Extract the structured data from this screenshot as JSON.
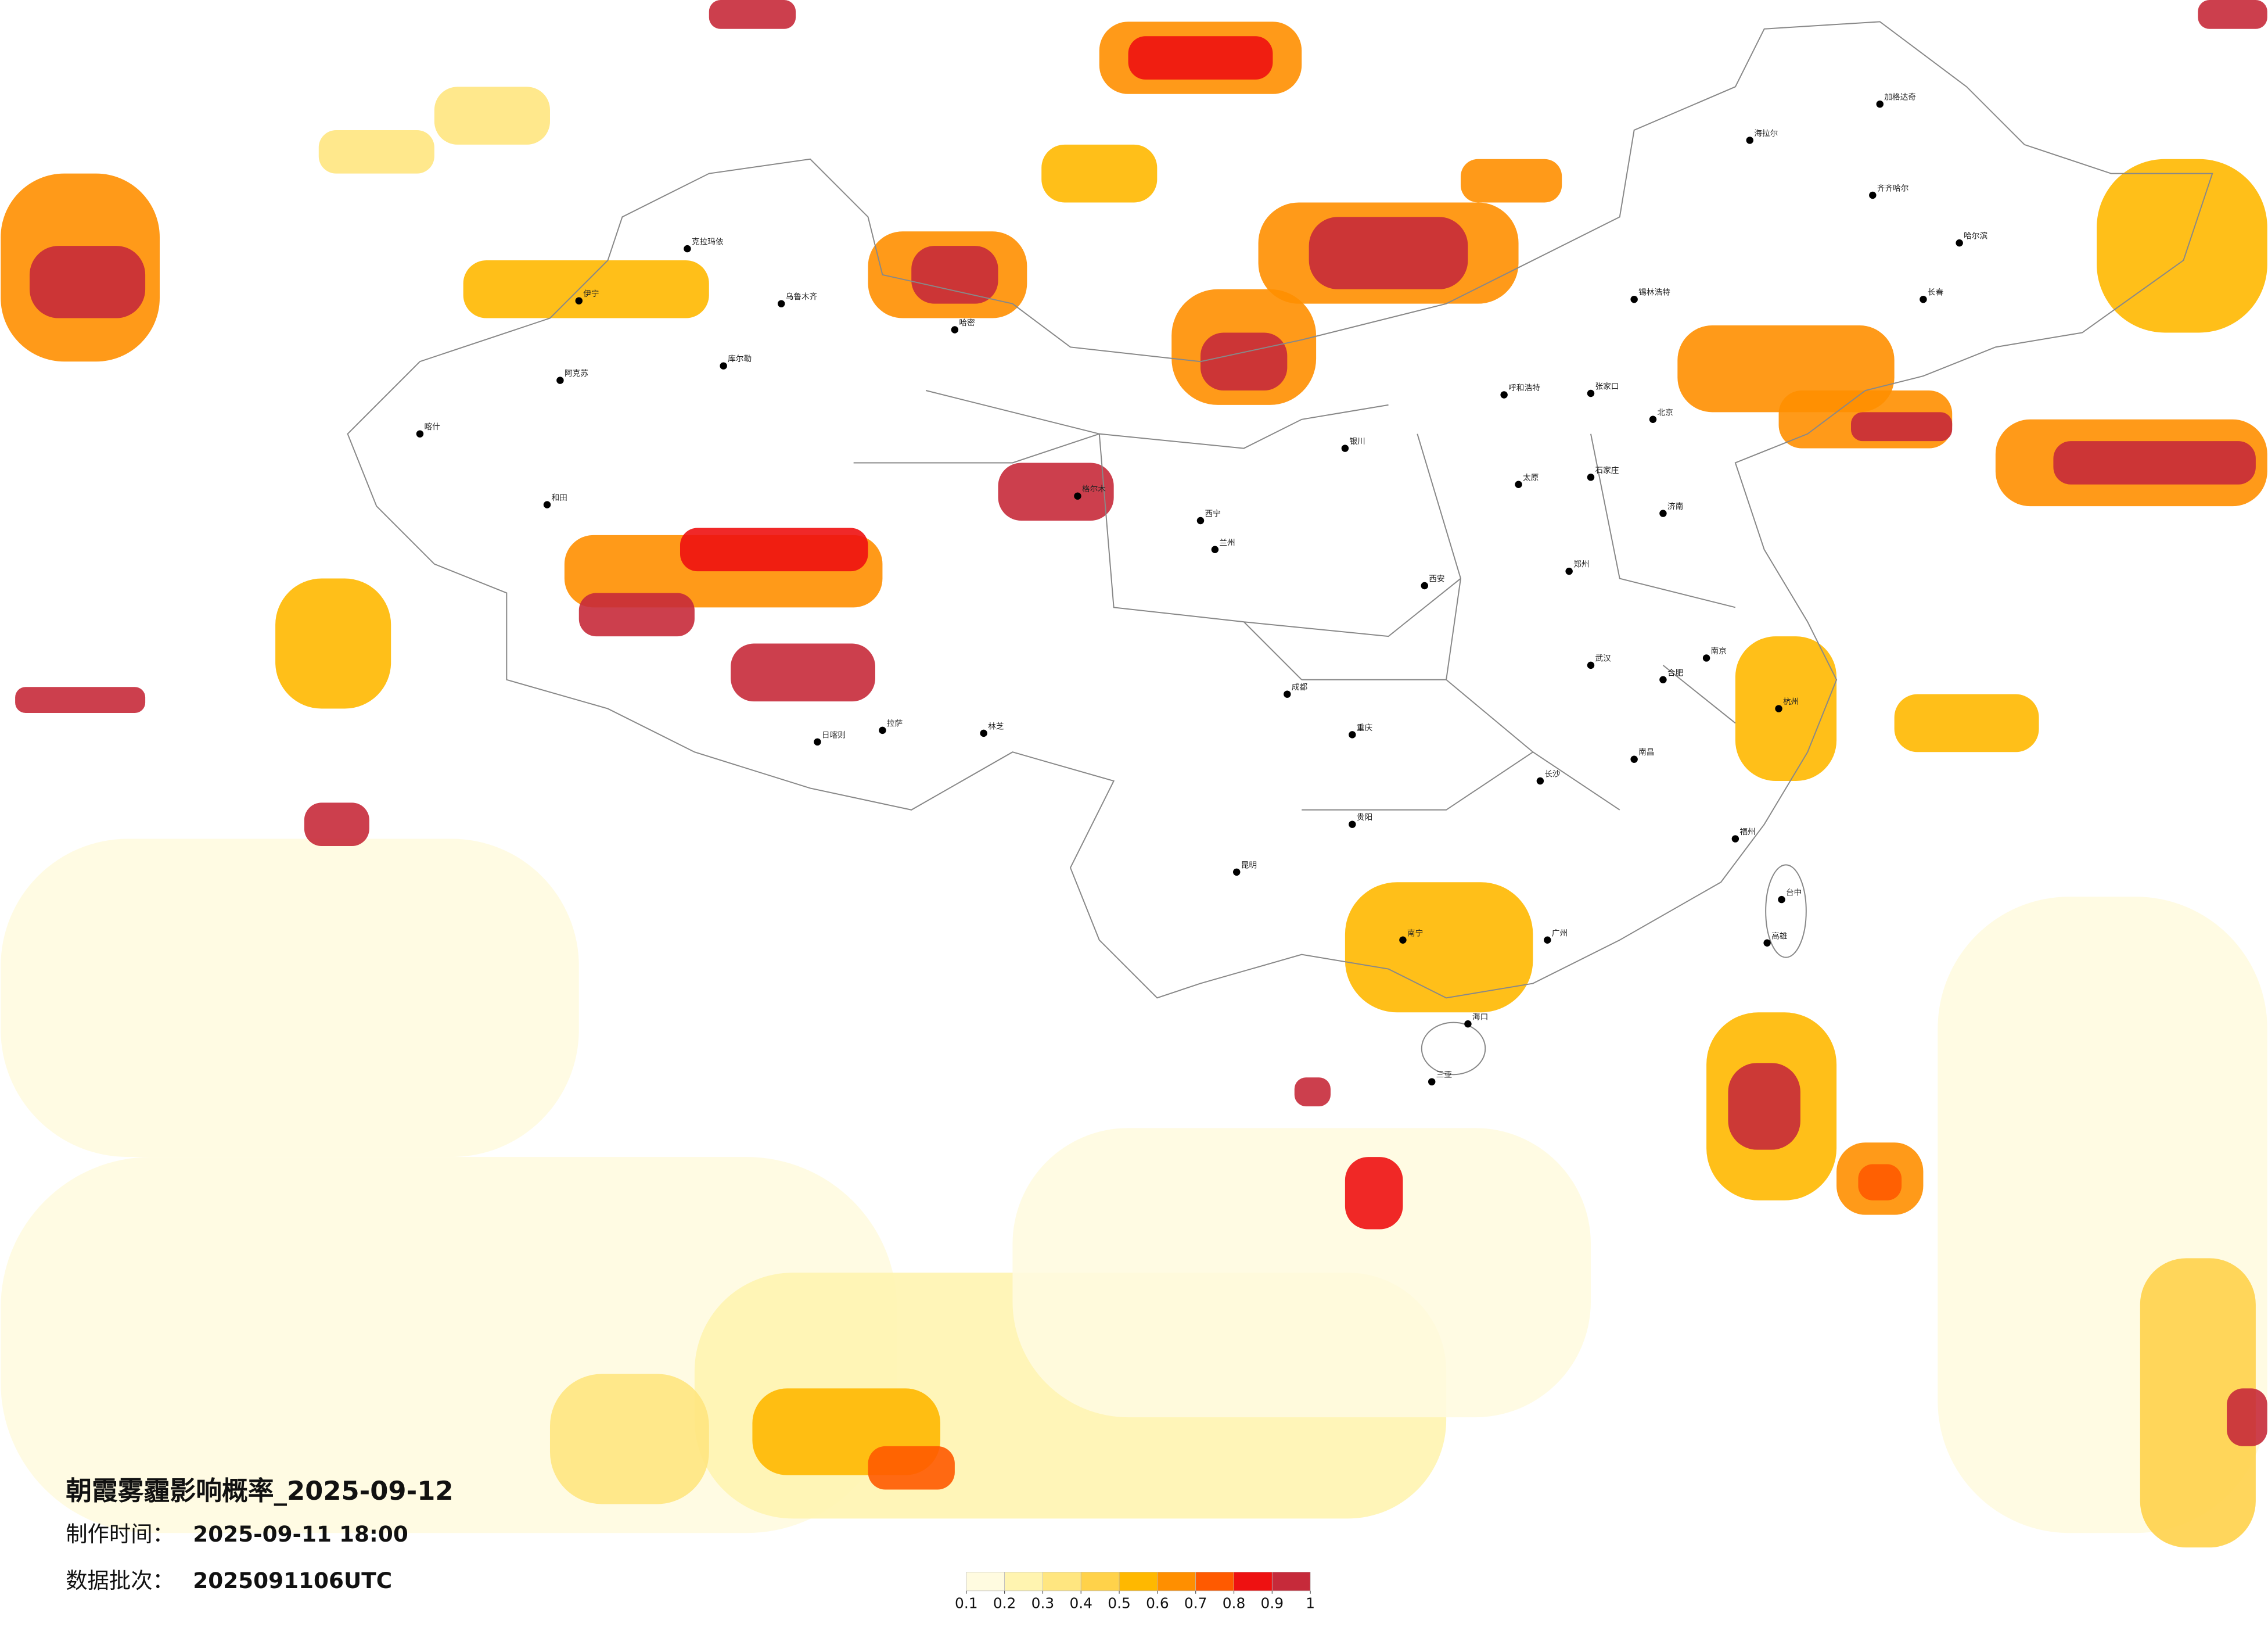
{
  "title": "朝霞雾霾影响概率_2025-09-12",
  "produced": {
    "label": "制作时间：",
    "value": "2025-09-11 18:00"
  },
  "batch": {
    "label": "数据批次：",
    "value": "2025091106UTC"
  },
  "legend": {
    "ticks": [
      0.1,
      0.2,
      0.3,
      0.4,
      0.5,
      0.6,
      0.7,
      0.8,
      0.9,
      1
    ],
    "colors": [
      "#fffbe0",
      "#fff4b0",
      "#ffe680",
      "#ffd24a",
      "#ffb800",
      "#ff8f00",
      "#ff5a00",
      "#ee1111",
      "#c62a3a"
    ]
  },
  "cities": [
    "海拉尔",
    "加格达奇",
    "齐齐哈尔",
    "哈尔滨",
    "长春",
    "锡林浩特",
    "呼和浩特",
    "张家口",
    "北京",
    "石家庄",
    "太原",
    "济南",
    "郑州",
    "西安",
    "兰州",
    "西宁",
    "银川",
    "武汉",
    "南京",
    "合肥",
    "杭州",
    "长沙",
    "南昌",
    "福州",
    "广州",
    "南宁",
    "海口",
    "三亚",
    "贵阳",
    "昆明",
    "成都",
    "重庆",
    "拉萨",
    "日喀则",
    "林芝",
    "格尔木",
    "喀什",
    "和田",
    "阿克苏",
    "库尔勒",
    "乌鲁木齐",
    "克拉玛依",
    "伊宁",
    "哈密",
    "台中",
    "高雄"
  ]
}
